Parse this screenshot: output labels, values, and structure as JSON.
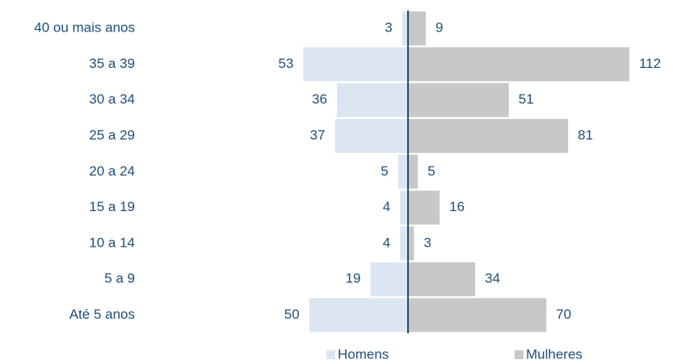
{
  "chart_data": {
    "type": "pyramid",
    "categories": [
      "40 ou mais anos",
      "35 a 39",
      "30 a 34",
      "25 a 29",
      "20 a 24",
      "15 a 19",
      "10 a 14",
      "5 a 9",
      "Até 5 anos"
    ],
    "series": [
      {
        "name": "Homens",
        "color": "#dce6f2",
        "values": [
          3,
          53,
          36,
          37,
          5,
          4,
          4,
          19,
          50
        ]
      },
      {
        "name": "Mulheres",
        "color": "#c8c8c8",
        "values": [
          9,
          112,
          51,
          81,
          5,
          16,
          3,
          34,
          70
        ]
      }
    ]
  }
}
